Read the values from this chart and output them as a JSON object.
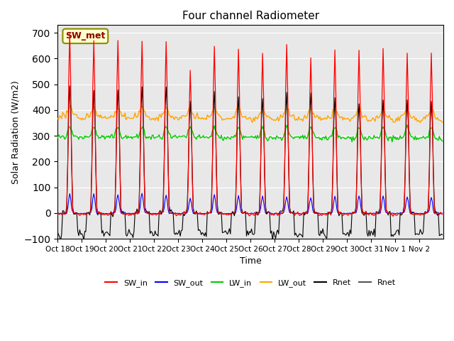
{
  "title": "Four channel Radiometer",
  "xlabel": "Time",
  "ylabel": "Solar Radiation (W/m2)",
  "ylim": [
    -100,
    730
  ],
  "annotation": "SW_met",
  "annotation_color": "#8B0000",
  "annotation_bg": "#FFFFCC",
  "annotation_border": "#8B8B00",
  "background_color": "#E8E8E8",
  "tick_labels": [
    "Oct 18",
    "Oct 19",
    "Oct 20",
    "Oct 21",
    "Oct 22",
    "Oct 23",
    "Oct 24",
    "Oct 25",
    "Oct 26",
    "Oct 27",
    "Oct 28",
    "Oct 29",
    "Oct 30",
    "Oct 31",
    "Nov 1",
    "Nov 2"
  ],
  "colors": {
    "SW_in": "#FF0000",
    "SW_out": "#0000FF",
    "LW_in": "#00CC00",
    "LW_out": "#FFA500",
    "Rnet1": "#000000",
    "Rnet2": "#555555"
  },
  "n_days": 16,
  "day_hours": 24,
  "sw_peaks": [
    700,
    670,
    668,
    668,
    668,
    555,
    645,
    635,
    620,
    655,
    605,
    630,
    630,
    640,
    620,
    620
  ],
  "sw_out_peaks": [
    75,
    72,
    73,
    78,
    70,
    60,
    70,
    65,
    65,
    65,
    60,
    65,
    68,
    65,
    65,
    62
  ],
  "rnet_peaks": [
    490,
    475,
    475,
    490,
    495,
    430,
    468,
    450,
    445,
    470,
    465,
    440,
    430,
    440,
    440,
    440
  ]
}
